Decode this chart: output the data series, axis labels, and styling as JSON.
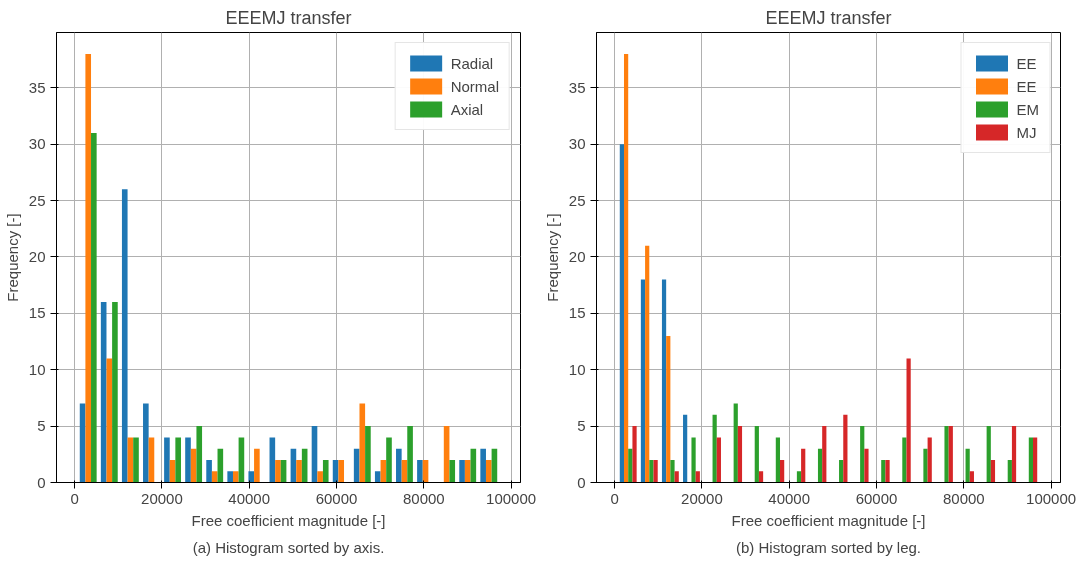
{
  "chart_data": [
    {
      "type": "histogram",
      "title": "EEEMJ transfer",
      "xlabel": "Free coefficient magnitude [-]",
      "ylabel": "Frequency [-]",
      "bins": [
        700,
        5530,
        10360,
        15190,
        20020,
        24850,
        29680,
        34510,
        39340,
        44170,
        49000,
        53830,
        58660,
        63490,
        68320,
        73150,
        77980,
        82810,
        87640,
        92470,
        97300
      ],
      "series": [
        {
          "name": "Radial",
          "color": "#1f77b4",
          "values": [
            7,
            16,
            26,
            7,
            4,
            4,
            2,
            1,
            1,
            4,
            3,
            5,
            2,
            3,
            1,
            3,
            2,
            0,
            2,
            3
          ]
        },
        {
          "name": "Normal",
          "color": "#ff7f0e",
          "values": [
            38,
            11,
            4,
            4,
            2,
            3,
            1,
            1,
            3,
            2,
            2,
            1,
            2,
            7,
            2,
            2,
            2,
            5,
            2,
            2
          ]
        },
        {
          "name": "Axial",
          "color": "#2ca02c",
          "values": [
            31,
            16,
            4,
            0,
            4,
            5,
            3,
            4,
            0,
            2,
            3,
            2,
            0,
            5,
            4,
            5,
            0,
            2,
            3,
            3
          ]
        }
      ],
      "xlim": [
        -4150,
        102150
      ],
      "ylim": [
        0,
        39.9
      ],
      "xticks": [
        0,
        20000,
        40000,
        60000,
        80000,
        100000
      ],
      "yticks": [
        0,
        5,
        10,
        15,
        20,
        25,
        30,
        35
      ],
      "grid": true,
      "legend": "top right",
      "annotations": [
        "(a) Histogram sorted by axis."
      ]
    },
    {
      "type": "histogram",
      "title": "EEEMJ transfer",
      "xlabel": "Free coefficient magnitude [-]",
      "ylabel": "Frequency [-]",
      "bins": [
        700,
        5530,
        10360,
        15190,
        20020,
        24850,
        29680,
        34510,
        39340,
        44170,
        49000,
        53830,
        58660,
        63490,
        68320,
        73150,
        77980,
        82810,
        87640,
        92470,
        97300
      ],
      "series": [
        {
          "name": "EE",
          "color": "#1f77b4",
          "values": [
            30,
            18,
            18,
            6,
            0,
            0,
            0,
            0,
            0,
            0,
            0,
            0,
            0,
            0,
            0,
            0,
            0,
            0,
            0,
            0
          ]
        },
        {
          "name": "EE",
          "color": "#ff7f0e",
          "values": [
            38,
            21,
            13,
            0,
            0,
            0,
            0,
            0,
            0,
            0,
            0,
            0,
            0,
            0,
            0,
            0,
            0,
            0,
            0,
            0
          ]
        },
        {
          "name": "EM",
          "color": "#2ca02c",
          "values": [
            3,
            2,
            2,
            4,
            6,
            7,
            5,
            4,
            1,
            3,
            2,
            5,
            2,
            4,
            3,
            5,
            3,
            5,
            2,
            4
          ]
        },
        {
          "name": "MJ",
          "color": "#d62728",
          "values": [
            5,
            2,
            1,
            1,
            4,
            5,
            1,
            2,
            3,
            5,
            6,
            3,
            2,
            11,
            4,
            5,
            1,
            2,
            5,
            4
          ]
        }
      ],
      "xlim": [
        -4150,
        102150
      ],
      "ylim": [
        0,
        39.9
      ],
      "xticks": [
        0,
        20000,
        40000,
        60000,
        80000,
        100000
      ],
      "yticks": [
        0,
        5,
        10,
        15,
        20,
        25,
        30,
        35
      ],
      "grid": true,
      "legend": "top right",
      "annotations": [
        "(b) Histogram sorted by leg."
      ]
    }
  ]
}
